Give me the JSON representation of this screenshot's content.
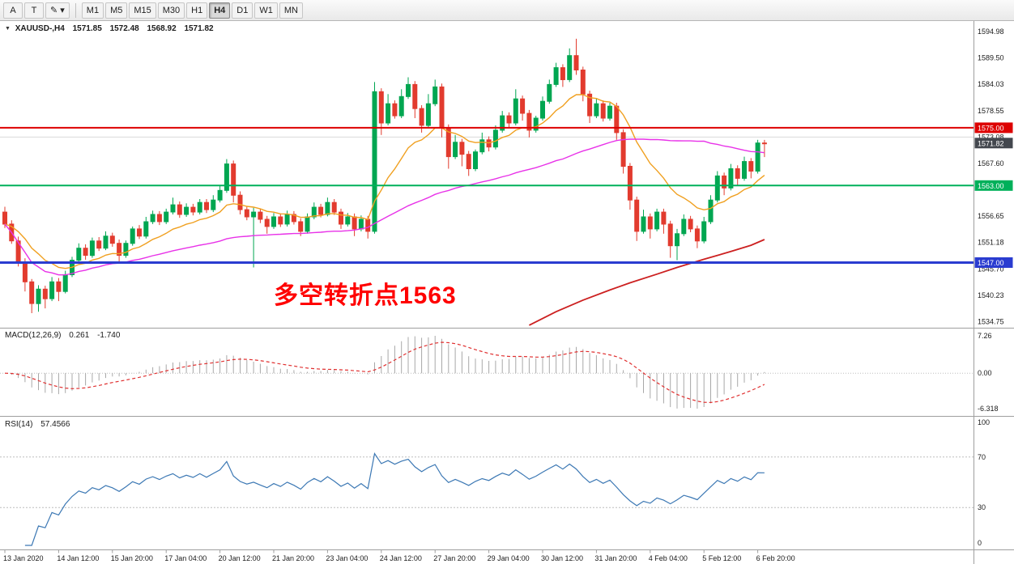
{
  "toolbar": {
    "left_buttons": [
      {
        "name": "cursor-tool-button",
        "label": "A",
        "dropdown": false
      },
      {
        "name": "text-tool-button",
        "label": "T",
        "dropdown": false
      },
      {
        "name": "draw-tool-button",
        "label": "✎",
        "dropdown": true
      }
    ],
    "timeframes": [
      "M1",
      "M5",
      "M15",
      "M30",
      "H1",
      "H4",
      "D1",
      "W1",
      "MN"
    ],
    "active_timeframe": "H4"
  },
  "chart": {
    "symbol_title": "XAUUSD-,H4",
    "ohlc": {
      "open": "1571.85",
      "high": "1572.48",
      "low": "1568.92",
      "close": "1571.82"
    },
    "annotation": {
      "text": "多空转折点1563",
      "color": "#ff0000"
    },
    "hlines": [
      {
        "price": 1575.0,
        "label": "1575.00",
        "color": "#dd0000",
        "width": 2
      },
      {
        "price": 1563.0,
        "label": "1563.00",
        "color": "#00b05a",
        "width": 2
      },
      {
        "price": 1547.0,
        "label": "1547.00",
        "color": "#2a3cd0",
        "width": 3
      }
    ],
    "current_price": {
      "value": 1571.82,
      "label": "1571.82",
      "badge_color": "#43474e"
    },
    "grid_price": 1573.08,
    "price_axis_labels": [
      1594.98,
      1589.5,
      1584.03,
      1578.55,
      1573.08,
      1567.6,
      1556.65,
      1551.18,
      1545.7,
      1540.23,
      1534.75
    ],
    "time_axis_labels": [
      "13 Jan 2020",
      "14 Jan 12:00",
      "15 Jan 20:00",
      "17 Jan 04:00",
      "20 Jan 12:00",
      "21 Jan 20:00",
      "23 Jan 04:00",
      "24 Jan 12:00",
      "27 Jan 20:00",
      "29 Jan 04:00",
      "30 Jan 12:00",
      "31 Jan 20:00",
      "4 Feb 04:00",
      "5 Feb 12:00",
      "6 Feb 20:00"
    ],
    "colors": {
      "up": "#00a651",
      "down": "#e23b2e",
      "ma_fast": "#f0a020",
      "ma_mid": "#e832e8",
      "ma_slow": "#cc2020",
      "macd_hist": "#a8a8a8",
      "macd_signal": "#e03131",
      "rsi": "#3c78b4",
      "level_line": "#bdbdbd",
      "grid_line": "#d9d9d9"
    }
  },
  "macd": {
    "title": "MACD(12,26,9)",
    "value_main": "0.261",
    "value_signal": "-1.740",
    "axis_top_label": "7.26",
    "axis_zero_label": "0.00",
    "axis_bottom_label": "-6.318"
  },
  "rsi": {
    "title": "RSI(14)",
    "value": "57.4566",
    "levels": [
      70,
      30
    ],
    "axis_labels": [
      "100",
      "70",
      "30",
      "0"
    ]
  },
  "chart_data": {
    "type": "candlestick",
    "symbol": "XAUUSD-",
    "timeframe": "H4",
    "title": "XAUUSD-,H4 1571.85 1572.48 1568.92 1571.82",
    "y_axis_range": [
      1533.8,
      1596.5
    ],
    "ma_fast_period": 13,
    "ma_mid_period": 50,
    "ma_slow_points": [
      [
        78,
        1534.0
      ],
      [
        82,
        1536.8
      ],
      [
        86,
        1539.2
      ],
      [
        90,
        1541.3
      ],
      [
        93,
        1542.8
      ],
      [
        97,
        1544.6
      ],
      [
        100,
        1546.0
      ],
      [
        104,
        1547.7
      ],
      [
        108,
        1549.3
      ],
      [
        111,
        1550.6
      ],
      [
        113,
        1551.8
      ]
    ],
    "candles": [
      [
        1557.5,
        1558.6,
        1554.2,
        1555.0
      ],
      [
        1555.0,
        1555.8,
        1550.9,
        1551.5
      ],
      [
        1551.5,
        1552.4,
        1546.2,
        1547.0
      ],
      [
        1547.0,
        1547.9,
        1541.0,
        1543.0
      ],
      [
        1543.0,
        1543.6,
        1536.5,
        1538.5
      ],
      [
        1538.5,
        1542.3,
        1536.8,
        1541.5
      ],
      [
        1541.5,
        1542.2,
        1537.5,
        1539.5
      ],
      [
        1539.5,
        1544.0,
        1539.0,
        1543.0
      ],
      [
        1543.0,
        1543.8,
        1539.0,
        1541.0
      ],
      [
        1541.0,
        1545.3,
        1540.6,
        1544.5
      ],
      [
        1544.5,
        1548.2,
        1544.0,
        1547.5
      ],
      [
        1547.5,
        1551.0,
        1547.0,
        1550.0
      ],
      [
        1550.0,
        1550.8,
        1547.6,
        1548.5
      ],
      [
        1548.5,
        1552.2,
        1548.0,
        1551.5
      ],
      [
        1551.5,
        1552.3,
        1549.4,
        1550.0
      ],
      [
        1550.0,
        1553.5,
        1549.6,
        1552.5
      ],
      [
        1552.5,
        1553.2,
        1550.3,
        1551.0
      ],
      [
        1551.0,
        1551.8,
        1547.2,
        1548.5
      ],
      [
        1548.5,
        1551.6,
        1548.0,
        1551.0
      ],
      [
        1551.0,
        1554.5,
        1550.5,
        1554.0
      ],
      [
        1554.0,
        1554.8,
        1551.9,
        1552.5
      ],
      [
        1552.5,
        1556.5,
        1552.0,
        1555.5
      ],
      [
        1555.5,
        1557.8,
        1555.0,
        1557.0
      ],
      [
        1557.0,
        1557.7,
        1554.8,
        1555.5
      ],
      [
        1555.5,
        1558.2,
        1555.0,
        1557.5
      ],
      [
        1557.5,
        1560.5,
        1557.0,
        1559.0
      ],
      [
        1559.0,
        1559.7,
        1556.3,
        1557.0
      ],
      [
        1557.0,
        1559.3,
        1556.5,
        1558.5
      ],
      [
        1558.5,
        1559.2,
        1556.8,
        1557.5
      ],
      [
        1557.5,
        1560.2,
        1557.0,
        1559.5
      ],
      [
        1559.5,
        1560.2,
        1557.3,
        1558.0
      ],
      [
        1558.0,
        1561.0,
        1557.5,
        1560.0
      ],
      [
        1560.0,
        1563.0,
        1559.5,
        1562.0
      ],
      [
        1562.0,
        1568.5,
        1561.5,
        1567.5
      ],
      [
        1567.5,
        1568.2,
        1559.5,
        1561.0
      ],
      [
        1561.0,
        1561.8,
        1557.0,
        1558.0
      ],
      [
        1558.0,
        1558.7,
        1555.8,
        1556.5
      ],
      [
        1556.5,
        1558.4,
        1546.0,
        1557.5
      ],
      [
        1557.5,
        1558.2,
        1555.2,
        1556.0
      ],
      [
        1556.0,
        1556.7,
        1553.0,
        1554.5
      ],
      [
        1554.5,
        1557.3,
        1554.0,
        1556.5
      ],
      [
        1556.5,
        1557.2,
        1554.4,
        1555.0
      ],
      [
        1555.0,
        1557.8,
        1554.5,
        1557.0
      ],
      [
        1557.0,
        1557.7,
        1554.9,
        1555.5
      ],
      [
        1555.5,
        1556.2,
        1552.5,
        1553.5
      ],
      [
        1553.5,
        1557.2,
        1553.0,
        1556.5
      ],
      [
        1556.5,
        1559.5,
        1556.0,
        1558.5
      ],
      [
        1558.5,
        1559.2,
        1556.4,
        1557.0
      ],
      [
        1557.0,
        1560.5,
        1556.6,
        1559.5
      ],
      [
        1559.5,
        1560.2,
        1556.9,
        1557.5
      ],
      [
        1557.5,
        1558.2,
        1554.0,
        1555.0
      ],
      [
        1555.0,
        1557.3,
        1554.5,
        1556.5
      ],
      [
        1556.5,
        1557.2,
        1552.5,
        1554.0
      ],
      [
        1554.0,
        1556.8,
        1553.5,
        1556.0
      ],
      [
        1556.0,
        1556.7,
        1552.0,
        1553.5
      ],
      [
        1553.5,
        1584.5,
        1553.0,
        1582.5
      ],
      [
        1582.5,
        1583.2,
        1573.5,
        1576.0
      ],
      [
        1576.0,
        1582.0,
        1575.5,
        1580.0
      ],
      [
        1580.0,
        1580.7,
        1576.9,
        1577.5
      ],
      [
        1577.5,
        1583.0,
        1577.0,
        1581.5
      ],
      [
        1581.5,
        1585.5,
        1581.0,
        1584.0
      ],
      [
        1584.0,
        1584.7,
        1577.0,
        1579.0
      ],
      [
        1579.0,
        1579.7,
        1574.0,
        1575.5
      ],
      [
        1575.5,
        1582.0,
        1575.0,
        1580.0
      ],
      [
        1580.0,
        1585.0,
        1579.5,
        1583.5
      ],
      [
        1583.5,
        1584.2,
        1573.0,
        1575.0
      ],
      [
        1575.0,
        1575.7,
        1566.5,
        1569.0
      ],
      [
        1569.0,
        1573.5,
        1568.5,
        1572.0
      ],
      [
        1572.0,
        1572.7,
        1567.0,
        1569.5
      ],
      [
        1569.5,
        1570.2,
        1565.0,
        1566.5
      ],
      [
        1566.5,
        1570.5,
        1566.0,
        1570.0
      ],
      [
        1570.0,
        1574.0,
        1569.5,
        1572.5
      ],
      [
        1572.5,
        1573.2,
        1570.1,
        1571.0
      ],
      [
        1571.0,
        1575.5,
        1570.5,
        1574.5
      ],
      [
        1574.5,
        1578.5,
        1574.0,
        1577.5
      ],
      [
        1577.5,
        1578.2,
        1575.1,
        1576.0
      ],
      [
        1576.0,
        1583.0,
        1575.5,
        1581.0
      ],
      [
        1581.0,
        1581.7,
        1576.5,
        1578.0
      ],
      [
        1578.0,
        1578.7,
        1573.0,
        1574.5
      ],
      [
        1574.5,
        1577.5,
        1574.0,
        1577.0
      ],
      [
        1577.0,
        1581.5,
        1576.5,
        1580.5
      ],
      [
        1580.5,
        1585.0,
        1580.0,
        1584.0
      ],
      [
        1584.0,
        1588.5,
        1583.5,
        1587.5
      ],
      [
        1587.5,
        1588.2,
        1583.5,
        1585.0
      ],
      [
        1585.0,
        1591.5,
        1584.5,
        1590.0
      ],
      [
        1590.0,
        1593.5,
        1586.0,
        1587.0
      ],
      [
        1587.0,
        1587.7,
        1580.5,
        1582.0
      ],
      [
        1582.0,
        1582.7,
        1576.0,
        1577.5
      ],
      [
        1577.5,
        1581.0,
        1577.0,
        1580.0
      ],
      [
        1580.0,
        1580.7,
        1576.3,
        1577.0
      ],
      [
        1577.0,
        1580.2,
        1576.5,
        1579.5
      ],
      [
        1579.5,
        1580.2,
        1572.5,
        1574.0
      ],
      [
        1574.0,
        1574.7,
        1565.5,
        1567.0
      ],
      [
        1567.0,
        1567.7,
        1558.0,
        1560.0
      ],
      [
        1560.0,
        1560.7,
        1551.5,
        1553.5
      ],
      [
        1553.5,
        1558.0,
        1553.0,
        1556.5
      ],
      [
        1556.5,
        1557.2,
        1552.0,
        1554.0
      ],
      [
        1554.0,
        1558.2,
        1553.5,
        1557.5
      ],
      [
        1557.5,
        1558.2,
        1553.0,
        1555.0
      ],
      [
        1555.0,
        1555.7,
        1548.0,
        1550.5
      ],
      [
        1550.5,
        1554.0,
        1547.5,
        1553.0
      ],
      [
        1553.0,
        1557.0,
        1552.5,
        1556.0
      ],
      [
        1556.0,
        1556.7,
        1553.3,
        1554.0
      ],
      [
        1554.0,
        1554.7,
        1550.0,
        1551.5
      ],
      [
        1551.5,
        1556.5,
        1551.0,
        1555.5
      ],
      [
        1555.5,
        1561.0,
        1555.0,
        1560.0
      ],
      [
        1560.0,
        1566.0,
        1559.5,
        1565.0
      ],
      [
        1565.0,
        1565.7,
        1561.0,
        1562.5
      ],
      [
        1562.5,
        1567.5,
        1562.0,
        1566.5
      ],
      [
        1566.5,
        1567.2,
        1563.0,
        1564.5
      ],
      [
        1564.5,
        1569.0,
        1564.0,
        1568.0
      ],
      [
        1568.0,
        1568.7,
        1564.5,
        1566.0
      ],
      [
        1566.0,
        1572.5,
        1565.5,
        1571.85
      ],
      [
        1571.85,
        1572.48,
        1568.92,
        1571.82
      ]
    ]
  }
}
